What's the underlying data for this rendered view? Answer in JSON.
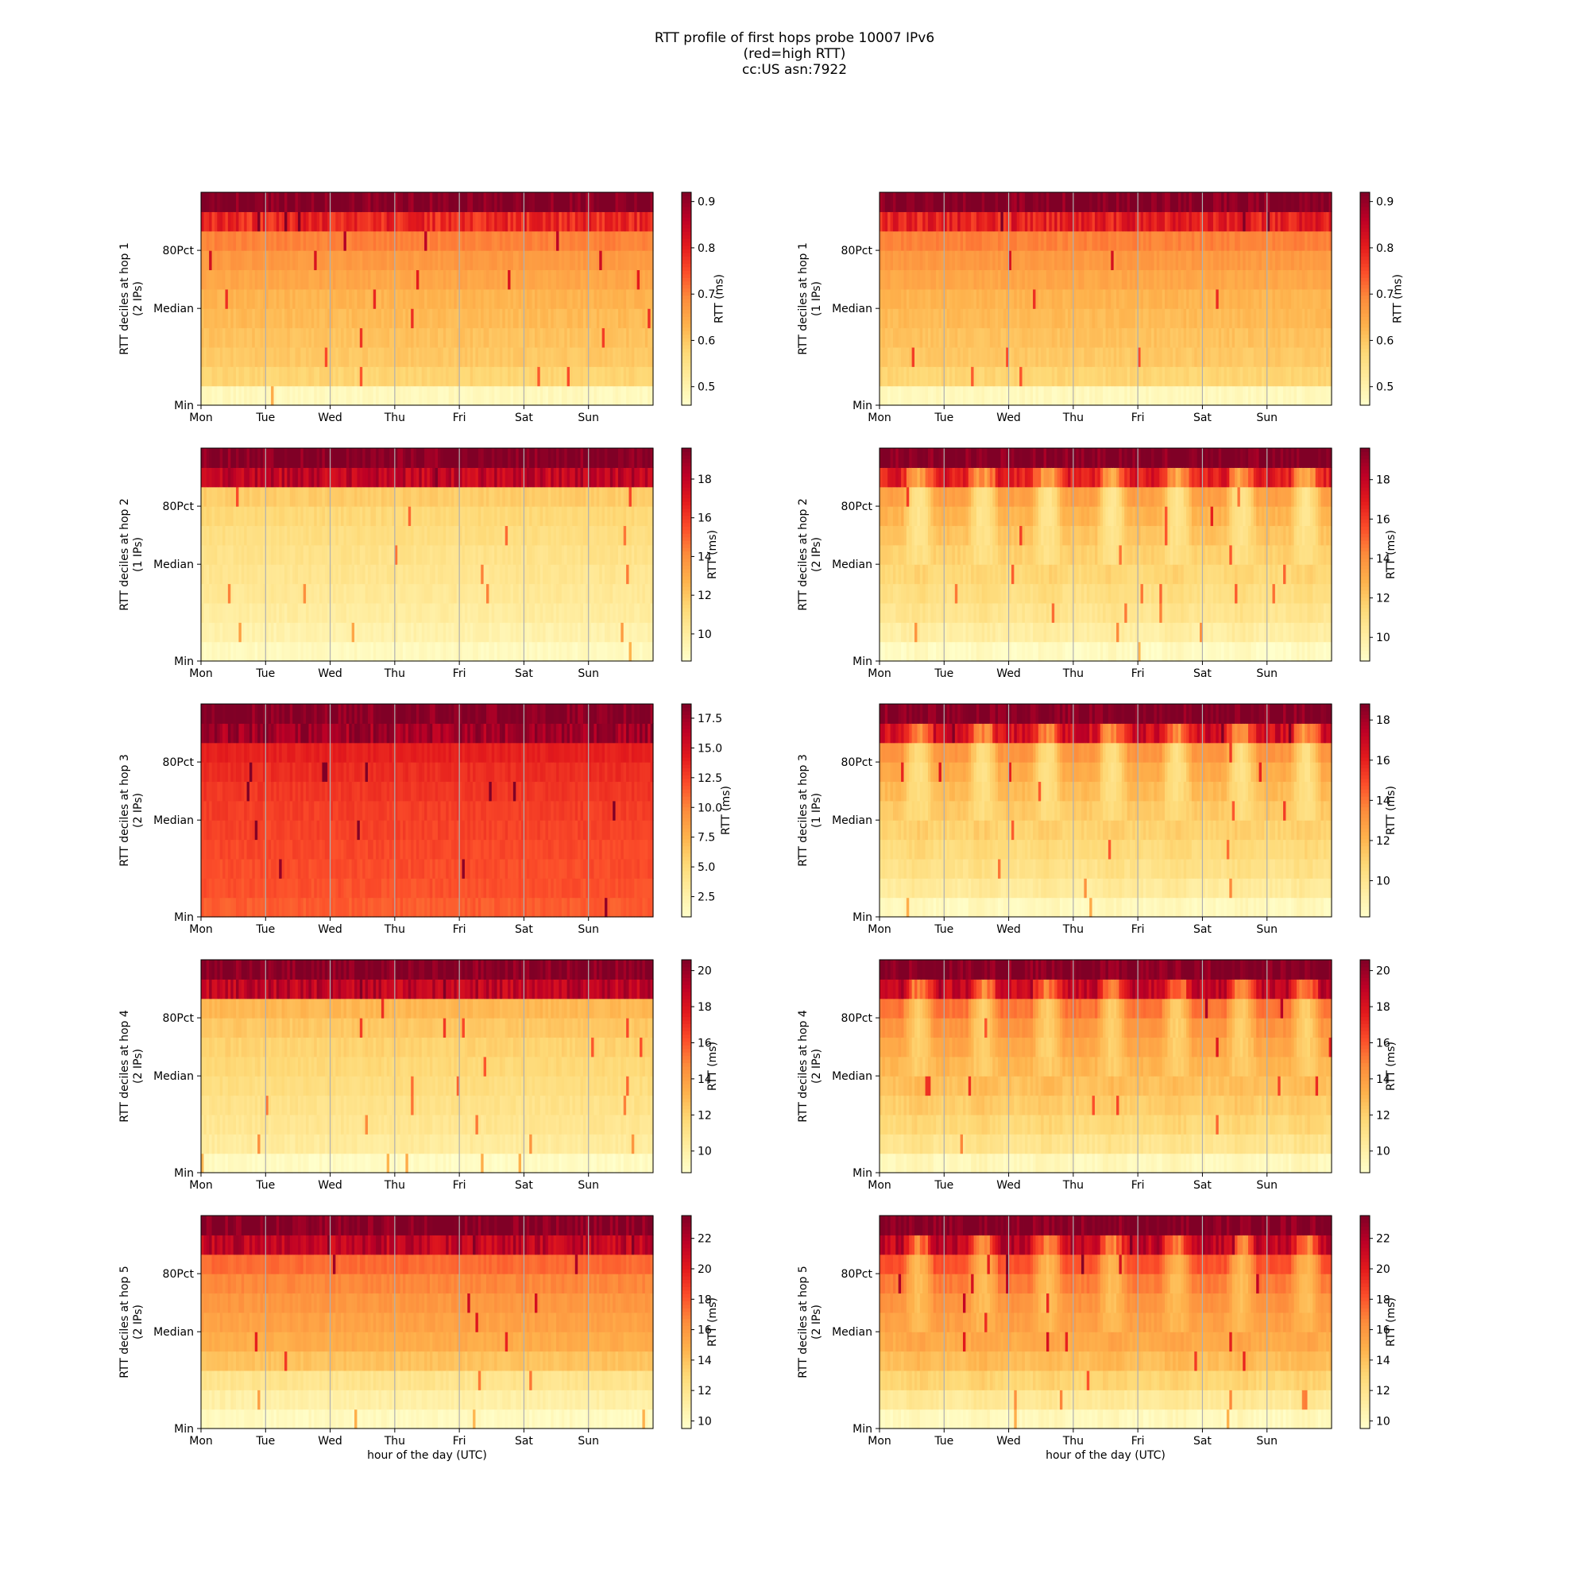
{
  "title": {
    "line1": "RTT profile of first hops probe 10007 IPv6",
    "line2": "(red=high RTT)",
    "line3": "cc:US asn:7922"
  },
  "x_label": "hour of the day (UTC)",
  "y_ticks": [
    "Min",
    "Median",
    "80Pct"
  ],
  "colorbar_label": "RTT (ms)",
  "x_ticks": [
    "Mon",
    "Tue",
    "Wed",
    "Thu",
    "Fri",
    "Sat",
    "Sun"
  ],
  "colors": {
    "colormap": "YlOrRd",
    "scale": [
      "#ffffcc",
      "#ffeda0",
      "#fed976",
      "#feb24c",
      "#fd8d3c",
      "#fc4e2a",
      "#e31a1c",
      "#bd0026",
      "#800026"
    ],
    "day_grid": "#b0b0b0"
  },
  "chart_data": [
    {
      "type": "heatmap",
      "ylabel": "RTT deciles at hop 1\n(2 IPs)",
      "ylabel_line1": "RTT deciles at hop 1",
      "ylabel_line2": "(2 IPs)",
      "hop": 1,
      "ips": 2,
      "x_ticks": [
        "Mon",
        "Tue",
        "Wed",
        "Thu",
        "Fri",
        "Sat",
        "Sun"
      ],
      "x_range_hours": [
        0,
        168
      ],
      "rows": 11,
      "colorbar": {
        "label": "RTT (ms)",
        "min": 0.46,
        "max": 0.92,
        "ticks": [
          0.5,
          0.6,
          0.7,
          0.8,
          0.9
        ],
        "tick_labels": [
          "0.5",
          "0.6",
          "0.7",
          "0.8",
          "0.9"
        ]
      },
      "pattern": "flat",
      "row_levels": [
        0.48,
        0.58,
        0.6,
        0.61,
        0.62,
        0.63,
        0.65,
        0.67,
        0.7,
        0.79,
        0.92
      ]
    },
    {
      "type": "heatmap",
      "ylabel": "RTT deciles at hop 1\n(1 IPs)",
      "ylabel_line1": "RTT deciles at hop 1",
      "ylabel_line2": "(1 IPs)",
      "hop": 1,
      "ips": 1,
      "x_ticks": [
        "Mon",
        "Tue",
        "Wed",
        "Thu",
        "Fri",
        "Sat",
        "Sun"
      ],
      "x_range_hours": [
        0,
        168
      ],
      "rows": 11,
      "colorbar": {
        "label": "RTT (ms)",
        "min": 0.46,
        "max": 0.92,
        "ticks": [
          0.5,
          0.6,
          0.7,
          0.8,
          0.9
        ],
        "tick_labels": [
          "0.5",
          "0.6",
          "0.7",
          "0.8",
          "0.9"
        ]
      },
      "pattern": "flat",
      "row_levels": [
        0.48,
        0.58,
        0.6,
        0.61,
        0.62,
        0.63,
        0.65,
        0.67,
        0.7,
        0.8,
        0.92
      ]
    },
    {
      "type": "heatmap",
      "ylabel": "RTT deciles at hop 2\n(1 IPs)",
      "ylabel_line1": "RTT deciles at hop 2",
      "ylabel_line2": "(1 IPs)",
      "hop": 2,
      "ips": 1,
      "x_ticks": [
        "Mon",
        "Tue",
        "Wed",
        "Thu",
        "Fri",
        "Sat",
        "Sun"
      ],
      "x_range_hours": [
        0,
        168
      ],
      "rows": 11,
      "colorbar": {
        "label": "RTT (ms)",
        "min": 8.6,
        "max": 19.6,
        "ticks": [
          10,
          12,
          14,
          16,
          18
        ],
        "tick_labels": [
          "10",
          "12",
          "14",
          "16",
          "18"
        ]
      },
      "pattern": "flat",
      "row_levels": [
        9.0,
        9.6,
        10.0,
        10.3,
        10.5,
        10.7,
        11.0,
        11.3,
        11.8,
        18.0,
        19.6
      ]
    },
    {
      "type": "heatmap",
      "ylabel": "RTT deciles at hop 2\n(2 IPs)",
      "ylabel_line1": "RTT deciles at hop 2",
      "ylabel_line2": "(2 IPs)",
      "hop": 2,
      "ips": 2,
      "x_ticks": [
        "Mon",
        "Tue",
        "Wed",
        "Thu",
        "Fri",
        "Sat",
        "Sun"
      ],
      "x_range_hours": [
        0,
        168
      ],
      "rows": 11,
      "colorbar": {
        "label": "RTT (ms)",
        "min": 8.8,
        "max": 19.6,
        "ticks": [
          10,
          12,
          14,
          16,
          18
        ],
        "tick_labels": [
          "10",
          "12",
          "14",
          "16",
          "18"
        ]
      },
      "pattern": "diurnal",
      "row_levels": [
        9.0,
        10.0,
        10.6,
        11.0,
        11.4,
        11.8,
        12.3,
        12.8,
        13.5,
        17.0,
        19.6
      ]
    },
    {
      "type": "heatmap",
      "ylabel": "RTT deciles at hop 3\n(2 IPs)",
      "ylabel_line1": "RTT deciles at hop 3",
      "ylabel_line2": "(2 IPs)",
      "hop": 3,
      "ips": 2,
      "x_ticks": [
        "Mon",
        "Tue",
        "Wed",
        "Thu",
        "Fri",
        "Sat",
        "Sun"
      ],
      "x_range_hours": [
        0,
        168
      ],
      "rows": 11,
      "colorbar": {
        "label": "RTT (ms)",
        "min": 0.8,
        "max": 18.7,
        "ticks": [
          2.5,
          5.0,
          7.5,
          10.0,
          12.5,
          15.0,
          17.5
        ],
        "tick_labels": [
          "2.5",
          "5.0",
          "7.5",
          "10.0",
          "12.5",
          "15.0",
          "17.5"
        ]
      },
      "pattern": "flat",
      "row_levels": [
        11.5,
        11.9,
        12.1,
        12.3,
        12.5,
        12.7,
        13.0,
        13.4,
        14.0,
        17.5,
        18.7
      ]
    },
    {
      "type": "heatmap",
      "ylabel": "RTT deciles at hop 3\n(1 IPs)",
      "ylabel_line1": "RTT deciles at hop 3",
      "ylabel_line2": "(1 IPs)",
      "hop": 3,
      "ips": 1,
      "x_ticks": [
        "Mon",
        "Tue",
        "Wed",
        "Thu",
        "Fri",
        "Sat",
        "Sun"
      ],
      "x_range_hours": [
        0,
        168
      ],
      "rows": 11,
      "colorbar": {
        "label": "RTT (ms)",
        "min": 8.2,
        "max": 18.8,
        "ticks": [
          10,
          12,
          14,
          16,
          18
        ],
        "tick_labels": [
          "10",
          "12",
          "14",
          "16",
          "18"
        ]
      },
      "pattern": "diurnal",
      "row_levels": [
        8.6,
        9.6,
        10.2,
        10.6,
        11.0,
        11.4,
        11.9,
        12.4,
        13.2,
        16.8,
        18.8
      ]
    },
    {
      "type": "heatmap",
      "ylabel": "RTT deciles at hop 4\n(2 IPs)",
      "ylabel_line1": "RTT deciles at hop 4",
      "ylabel_line2": "(2 IPs)",
      "hop": 4,
      "ips": 2,
      "x_ticks": [
        "Mon",
        "Tue",
        "Wed",
        "Thu",
        "Fri",
        "Sat",
        "Sun"
      ],
      "x_range_hours": [
        0,
        168
      ],
      "rows": 11,
      "colorbar": {
        "label": "RTT (ms)",
        "min": 8.8,
        "max": 20.6,
        "ticks": [
          10,
          12,
          14,
          16,
          18,
          20
        ],
        "tick_labels": [
          "10",
          "12",
          "14",
          "16",
          "18",
          "20"
        ]
      },
      "pattern": "flat",
      "row_levels": [
        9.1,
        10.4,
        10.8,
        11.1,
        11.4,
        11.7,
        12.0,
        12.4,
        13.0,
        19.0,
        20.6
      ]
    },
    {
      "type": "heatmap",
      "ylabel": "RTT deciles at hop 4\n(2 IPs)",
      "ylabel_line1": "RTT deciles at hop 4",
      "ylabel_line2": "(2 IPs)",
      "hop": 4,
      "ips": 2,
      "x_ticks": [
        "Mon",
        "Tue",
        "Wed",
        "Thu",
        "Fri",
        "Sat",
        "Sun"
      ],
      "x_range_hours": [
        0,
        168
      ],
      "rows": 11,
      "colorbar": {
        "label": "RTT (ms)",
        "min": 8.8,
        "max": 20.6,
        "ticks": [
          10,
          12,
          14,
          16,
          18,
          20
        ],
        "tick_labels": [
          "10",
          "12",
          "14",
          "16",
          "18",
          "20"
        ]
      },
      "pattern": "diurnal",
      "row_levels": [
        9.3,
        10.8,
        11.6,
        12.1,
        12.6,
        13.1,
        13.7,
        14.4,
        15.3,
        18.8,
        20.6
      ]
    },
    {
      "type": "heatmap",
      "ylabel": "RTT deciles at hop 5\n(2 IPs)",
      "ylabel_line1": "RTT deciles at hop 5",
      "ylabel_line2": "(2 IPs)",
      "hop": 5,
      "ips": 2,
      "x_ticks": [
        "Mon",
        "Tue",
        "Wed",
        "Thu",
        "Fri",
        "Sat",
        "Sun"
      ],
      "x_range_hours": [
        0,
        168
      ],
      "rows": 11,
      "colorbar": {
        "label": "RTT (ms)",
        "min": 9.5,
        "max": 23.5,
        "ticks": [
          10,
          12,
          14,
          16,
          18,
          20,
          22
        ],
        "tick_labels": [
          "10",
          "12",
          "14",
          "16",
          "18",
          "20",
          "22"
        ]
      },
      "pattern": "flat",
      "row_levels": [
        10.0,
        11.0,
        12.0,
        14.0,
        15.0,
        15.5,
        16.0,
        16.6,
        17.5,
        21.5,
        23.5
      ]
    },
    {
      "type": "heatmap",
      "ylabel": "RTT deciles at hop 5\n(2 IPs)",
      "ylabel_line1": "RTT deciles at hop 5",
      "ylabel_line2": "(2 IPs)",
      "hop": 5,
      "ips": 2,
      "x_ticks": [
        "Mon",
        "Tue",
        "Wed",
        "Thu",
        "Fri",
        "Sat",
        "Sun"
      ],
      "x_range_hours": [
        0,
        168
      ],
      "rows": 11,
      "colorbar": {
        "label": "RTT (ms)",
        "min": 9.5,
        "max": 23.5,
        "ticks": [
          10,
          12,
          14,
          16,
          18,
          20,
          22
        ],
        "tick_labels": [
          "10",
          "12",
          "14",
          "16",
          "18",
          "20",
          "22"
        ]
      },
      "pattern": "diurnal",
      "row_levels": [
        10.0,
        11.5,
        13.0,
        14.2,
        15.0,
        15.6,
        16.2,
        17.0,
        18.2,
        21.5,
        23.5
      ]
    }
  ]
}
